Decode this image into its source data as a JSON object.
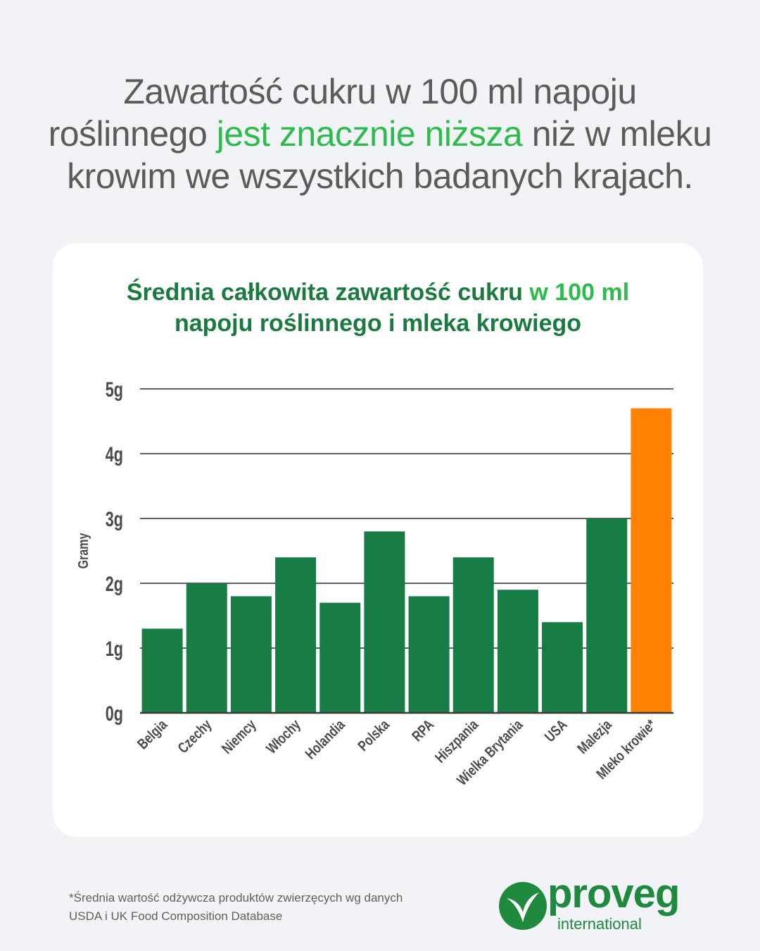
{
  "headline": {
    "part1": "Zawartość cukru w 100 ml napoju roślinnego ",
    "highlight": "jest znacznie niższa",
    "part2": " niż w mleku krowim we wszystkich badanych krajach."
  },
  "chart_title": {
    "part1": "Średnia całkowita zawartość cukru ",
    "highlight": "w 100 ml",
    "part2": " napoju roślinnego i mleka krowiego"
  },
  "chart_data": {
    "type": "bar",
    "title": "Średnia całkowita zawartość cukru w 100 ml napoju roślinnego i mleka krowiego",
    "ylabel": "Gramy",
    "xlabel": "",
    "ylim": [
      0,
      5
    ],
    "yticks": [
      "0g",
      "1g",
      "2g",
      "3g",
      "4g",
      "5g"
    ],
    "grid": true,
    "categories": [
      "Belgia",
      "Czechy",
      "Niemcy",
      "Włochy",
      "Holandia",
      "Polska",
      "RPA",
      "Hiszpania",
      "Wielka Brytania",
      "USA",
      "Malezja",
      "Mleko krowie*"
    ],
    "values": [
      1.3,
      2.0,
      1.8,
      2.4,
      1.7,
      2.8,
      1.8,
      2.4,
      1.9,
      1.4,
      3.0,
      4.7
    ],
    "colors": {
      "plant": "#177d45",
      "cow": "#ff8200",
      "grid": "#2b2b2b"
    }
  },
  "footnote": {
    "line1": "*Średnia wartość odżywcza produktów zwierzęcych wg danych",
    "line2": "USDA i UK Food Composition Database"
  },
  "logo": {
    "word": "proveg",
    "sub": "international",
    "color": "#1f8a3e"
  }
}
